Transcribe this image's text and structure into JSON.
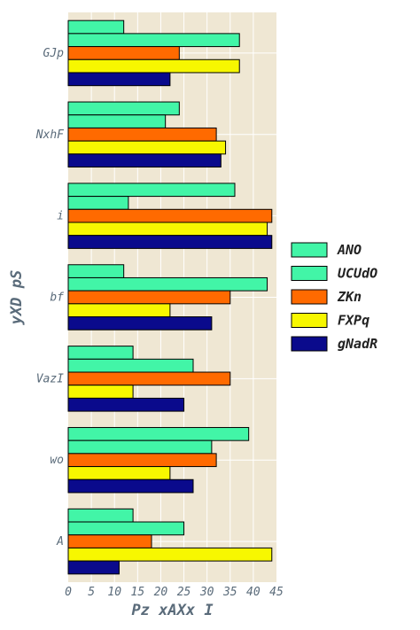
{
  "chart_data": {
    "type": "bar",
    "orientation": "horizontal",
    "categories": [
      "GJp",
      "NxhF",
      "i",
      "bf",
      "VazI",
      "wo",
      "A"
    ],
    "series": [
      {
        "name": "ANO",
        "color": "#42f5a7",
        "values": [
          12,
          24,
          36,
          12,
          14,
          39,
          14
        ]
      },
      {
        "name": "UCUdO",
        "color": "#42f5a7",
        "values": [
          37,
          21,
          13,
          43,
          27,
          31,
          25
        ]
      },
      {
        "name": "ZKn",
        "color": "#ff6a00",
        "values": [
          24,
          32,
          44,
          35,
          35,
          32,
          18
        ]
      },
      {
        "name": "FXPq",
        "color": "#f7f700",
        "values": [
          37,
          34,
          43,
          22,
          14,
          22,
          44
        ]
      },
      {
        "name": "gNadR",
        "color": "#0a0a8c",
        "values": [
          22,
          33,
          44,
          31,
          25,
          27,
          11
        ]
      }
    ],
    "xlabel": "Pz xAXx I",
    "ylabel": "yXD pS",
    "xlim": [
      0,
      45
    ],
    "xticks": [
      "0",
      "5",
      "10",
      "15",
      "20",
      "25",
      "30",
      "35",
      "40",
      "45"
    ],
    "grid": true,
    "legend_position": "right",
    "plot_background": "#efe7d3",
    "grid_color": "#ffffff"
  }
}
